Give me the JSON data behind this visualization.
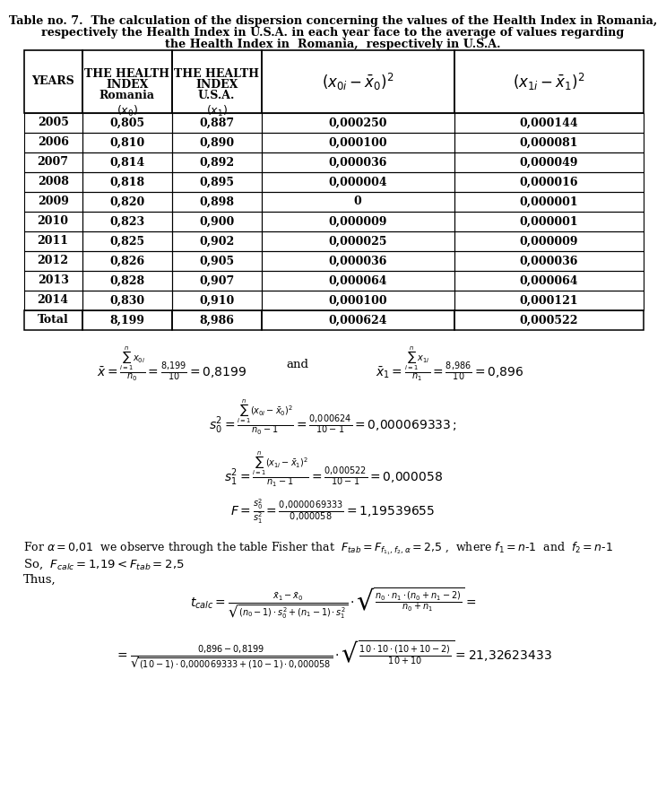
{
  "title_line1": "Table no. 7.  The calculation of the dispersion concerning the values of the Health Index in Romania,",
  "title_line2": "respectively the Health Index in U.S.A. in each year face to the average of values regarding",
  "title_line3": "the Health Index in  Romania,  respectively in U.S.A.",
  "rows": [
    [
      "2005",
      "0,805",
      "0,887",
      "0,000250",
      "0,000144"
    ],
    [
      "2006",
      "0,810",
      "0,890",
      "0,000100",
      "0,000081"
    ],
    [
      "2007",
      "0,814",
      "0,892",
      "0,000036",
      "0,000049"
    ],
    [
      "2008",
      "0,818",
      "0,895",
      "0,000004",
      "0,000016"
    ],
    [
      "2009",
      "0,820",
      "0,898",
      "0",
      "0,000001"
    ],
    [
      "2010",
      "0,823",
      "0,900",
      "0,000009",
      "0,000001"
    ],
    [
      "2011",
      "0,825",
      "0,902",
      "0,000025",
      "0,000009"
    ],
    [
      "2012",
      "0,826",
      "0,905",
      "0,000036",
      "0,000036"
    ],
    [
      "2013",
      "0,828",
      "0,907",
      "0,000064",
      "0,000064"
    ],
    [
      "2014",
      "0,830",
      "0,910",
      "0,000100",
      "0,000121"
    ]
  ],
  "total_row": [
    "Total",
    "8,199",
    "8,986",
    "0,000624",
    "0,000522"
  ],
  "background": "#ffffff",
  "text_color": "#000000",
  "border_color": "#000000"
}
